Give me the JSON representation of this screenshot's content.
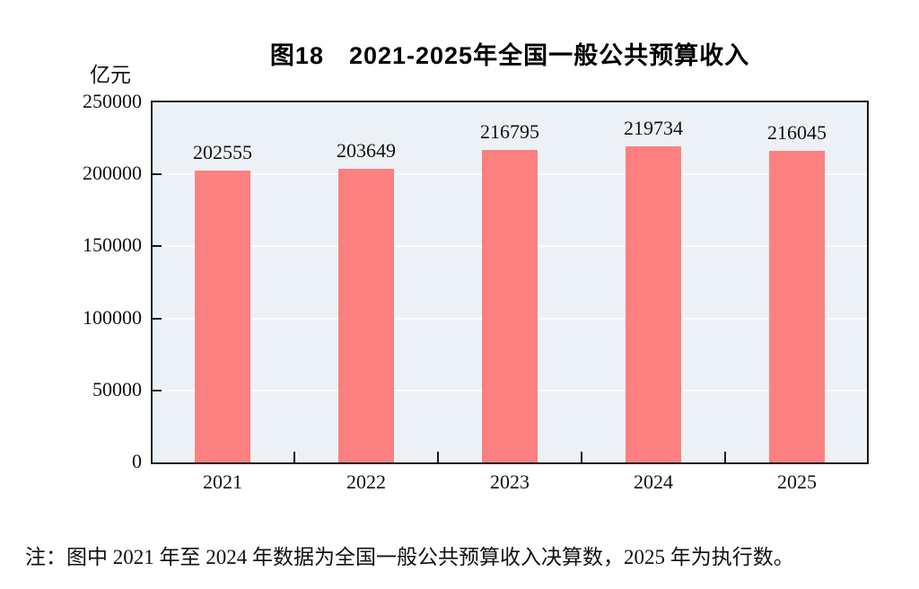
{
  "title": "图18　2021-2025年全国一般公共预算收入",
  "unit_label": "亿元",
  "note": "注：图中 2021 年至 2024 年数据为全国一般公共预算收入决算数，2025 年为执行数。",
  "colors": {
    "bar": "#FC8080",
    "plot_bg": "#ECF1F6",
    "grid": "#FFFFFF",
    "axis": "#1A1A1A",
    "text": "#111111"
  },
  "chart_data": {
    "type": "bar",
    "categories": [
      "2021",
      "2022",
      "2023",
      "2024",
      "2025"
    ],
    "values": [
      202555,
      203649,
      216795,
      219734,
      216045
    ],
    "title": "图18　2021-2025年全国一般公共预算收入",
    "xlabel": "",
    "ylabel": "亿元",
    "ylim": [
      0,
      250000
    ],
    "yticks": [
      0,
      50000,
      100000,
      150000,
      200000,
      250000
    ],
    "grid": true,
    "legend": "none",
    "data_labels": true
  }
}
